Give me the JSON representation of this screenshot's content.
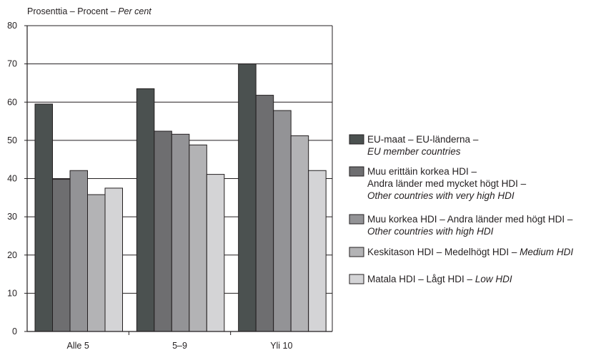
{
  "chart_data": {
    "type": "bar",
    "ylabel": {
      "fi": "Prosenttia",
      "sep1": " – ",
      "sv": "Procent",
      "sep2": " – ",
      "en": "Per cent"
    },
    "ylim": [
      0,
      80
    ],
    "yticks": [
      0,
      10,
      20,
      30,
      40,
      50,
      60,
      70,
      80
    ],
    "grid": true,
    "legend_position": "right",
    "categories": [
      "Alle 5",
      "5–9",
      "Yli 10"
    ],
    "series": [
      {
        "name": "EU-maat – EU-länderna – EU member countries",
        "legend_lines": [
          {
            "text": "EU-maat – EU-länderna –",
            "italic": ""
          },
          {
            "text": "",
            "italic": "EU member countries"
          }
        ],
        "color": "#4b5150",
        "values": [
          59.5,
          63.5,
          70
        ]
      },
      {
        "name": "Muu erittäin korkea HDI – Andra länder med mycket högt HDI – Other countries with very high HDI",
        "legend_lines": [
          {
            "text": "Muu erittäin korkea HDI –",
            "italic": ""
          },
          {
            "text": "Andra länder med mycket högt HDI –",
            "italic": ""
          },
          {
            "text": "",
            "italic": "Other countries with very high HDI"
          }
        ],
        "color": "#6e6e70",
        "values": [
          39.8,
          52.4,
          61.8
        ]
      },
      {
        "name": "Muu korkea HDI – Andra länder med högt HDI – Other countries with high HDI",
        "legend_lines": [
          {
            "text": "Muu korkea HDI – Andra länder med högt HDI –",
            "italic": ""
          },
          {
            "text": "",
            "italic": "Other countries with high HDI"
          }
        ],
        "color": "#939396",
        "values": [
          42.1,
          51.6,
          57.8
        ]
      },
      {
        "name": "Keskitason HDI – Medelhögt HDI – Medium HDI",
        "legend_lines": [
          {
            "text": "Keskitason HDI – Medelhögt HDI – ",
            "italic": "Medium HDI"
          }
        ],
        "color": "#b3b3b5",
        "values": [
          35.8,
          48.8,
          51.2
        ]
      },
      {
        "name": "Matala HDI – Lågt HDI – Low HDI",
        "legend_lines": [
          {
            "text": "Matala HDI – Lågt HDI – ",
            "italic": "Low HDI"
          }
        ],
        "color": "#d4d4d6",
        "values": [
          37.5,
          41.1,
          42.1
        ]
      }
    ]
  }
}
